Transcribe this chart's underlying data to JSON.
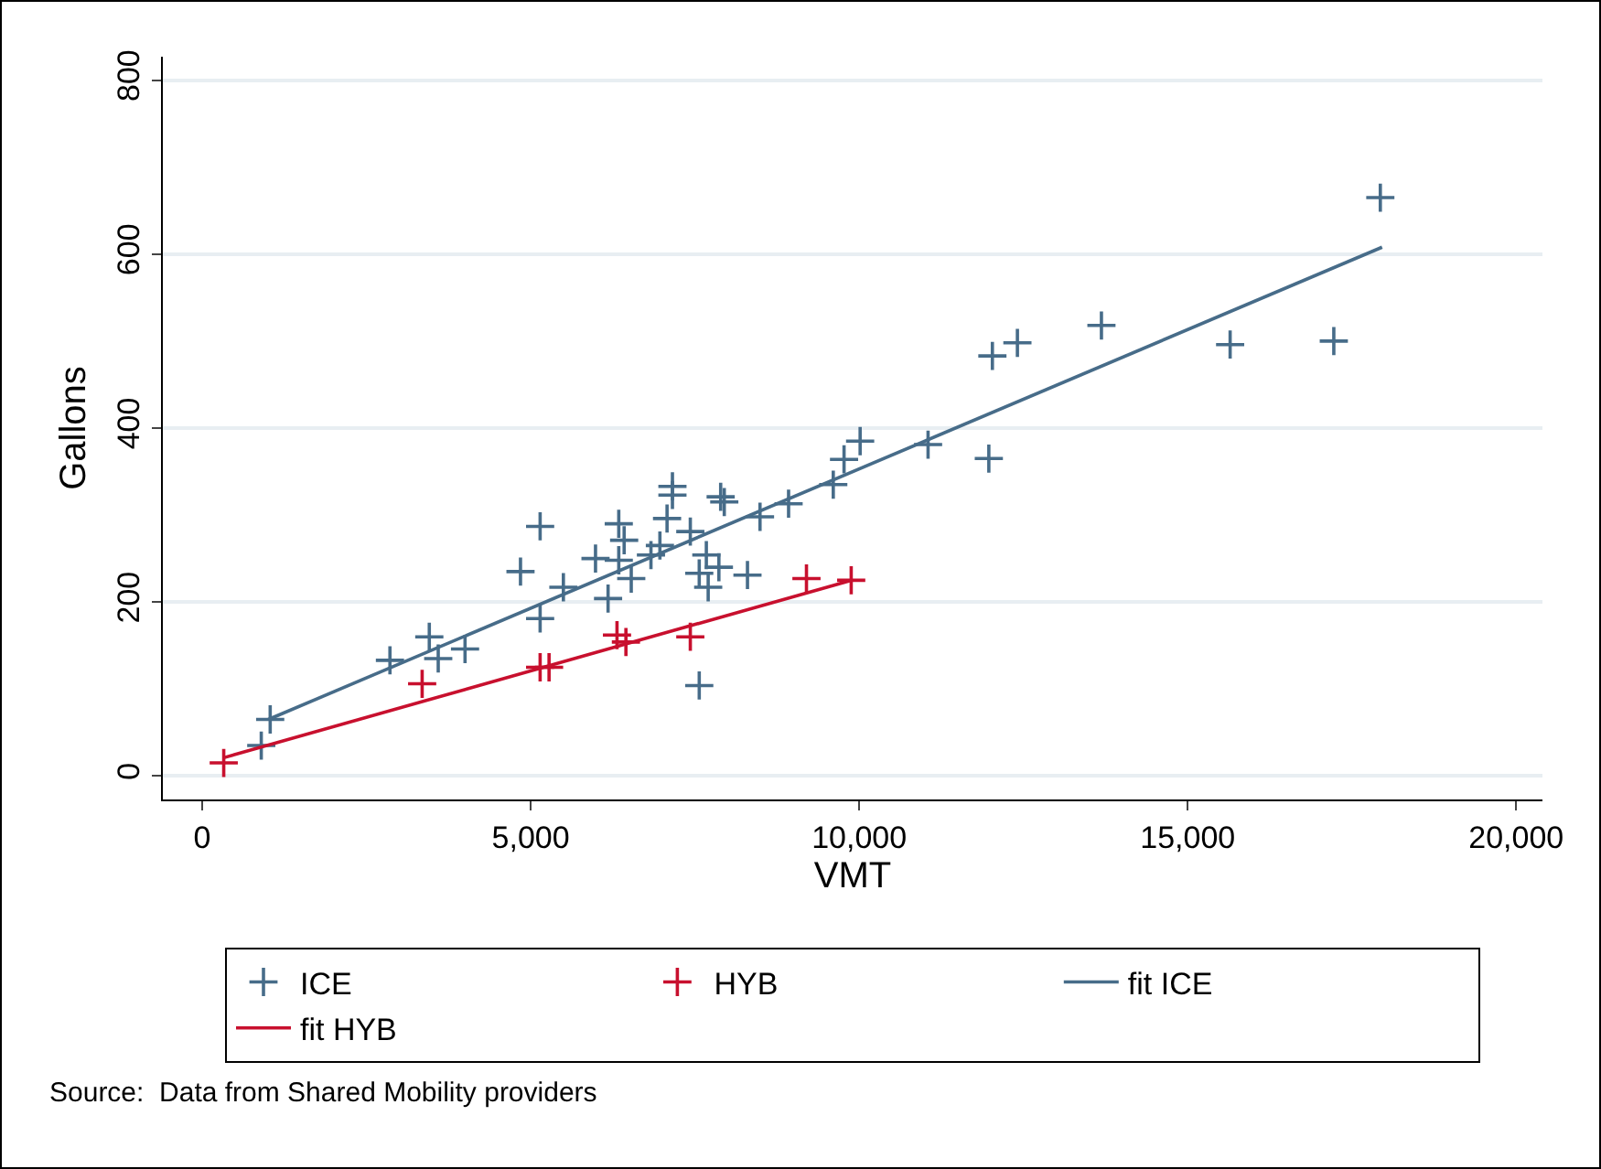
{
  "chart_data": {
    "type": "scatter",
    "xlabel": "VMT",
    "ylabel": "Gallons",
    "xlim": [
      -600,
      20400
    ],
    "ylim": [
      -27,
      827
    ],
    "xticks": [
      0,
      {
        "value": 5000,
        "label": "5,000"
      },
      {
        "value": 10000,
        "label": "10,000"
      },
      {
        "value": 15000,
        "label": "15,000"
      },
      {
        "value": 20000,
        "label": "20,000"
      }
    ],
    "yticks": [
      0,
      200,
      400,
      600,
      800
    ],
    "grid": "y",
    "legend": "bottom",
    "marker": "cross",
    "series": [
      {
        "name": "ICE",
        "type": "scatter",
        "color": "#476c89",
        "x": [
          1034,
          898,
          2857,
          3456,
          3592,
          4000,
          4844,
          5143,
          5143,
          5497,
          5986,
          6177,
          6340,
          6340,
          6422,
          6530,
          6830,
          6966,
          7075,
          7157,
          7157,
          7429,
          7565,
          7673,
          7701,
          7864,
          7891,
          7946,
          8299,
          7565,
          8490,
          8925,
          9605,
          9769,
          10014,
          11048,
          11973,
          12027,
          12408,
          13687,
          15646,
          17224,
          17932
        ],
        "values": [
          65,
          35,
          133,
          160,
          135,
          146,
          235,
          287,
          181,
          217,
          250,
          204,
          290,
          248,
          271,
          227,
          254,
          265,
          296,
          323,
          333,
          281,
          233,
          254,
          217,
          240,
          321,
          315,
          231,
          104,
          298,
          313,
          335,
          364,
          385,
          381,
          365,
          483,
          498,
          518,
          496,
          500,
          665
        ]
      },
      {
        "name": "HYB",
        "type": "scatter",
        "color": "#c8102e",
        "x": [
          327,
          3347,
          5143,
          5279,
          6313,
          6449,
          7429,
          9197,
          9878
        ],
        "values": [
          15,
          106,
          125,
          125,
          162,
          154,
          160,
          227,
          225
        ]
      },
      {
        "name": "fit ICE",
        "type": "line",
        "marker": "none",
        "color": "#476c89",
        "x": [
          1007,
          17959
        ],
        "values": [
          65,
          608
        ]
      },
      {
        "name": "fit HYB",
        "type": "line",
        "marker": "none",
        "color": "#c8102e",
        "x": [
          327,
          9878
        ],
        "values": [
          21,
          225
        ]
      }
    ],
    "annotations": [
      "Source:  Data from Shared Mobility providers"
    ]
  }
}
